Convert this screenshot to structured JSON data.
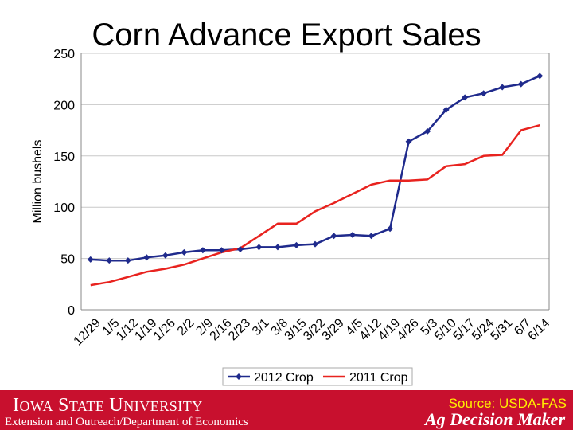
{
  "footer": {
    "university": "Iowa State University",
    "department": "Extension and Outreach/Department of Economics",
    "source": "Source: USDA-FAS",
    "brand": "Ag Decision Maker"
  },
  "colors": {
    "series_2012": "#1f2a8c",
    "series_2011": "#e8231f",
    "footer_bg": "#c8102e",
    "source_text": "#ffee00"
  },
  "chart_data": {
    "type": "line",
    "title": "Corn Advance Export Sales",
    "ylabel": "Million bushels",
    "xlabel": "",
    "ylim": [
      0,
      250
    ],
    "yticks": [
      0,
      50,
      100,
      150,
      200,
      250
    ],
    "grid": true,
    "legend_position": "bottom",
    "categories": [
      "12/29",
      "1/5",
      "1/12",
      "1/19",
      "1/26",
      "2/2",
      "2/9",
      "2/16",
      "2/23",
      "3/1",
      "3/8",
      "3/15",
      "3/22",
      "3/29",
      "4/5",
      "4/12",
      "4/19",
      "4/26",
      "5/3",
      "5/10",
      "5/17",
      "5/24",
      "5/31",
      "6/7",
      "6/14"
    ],
    "series": [
      {
        "name": "2012 Crop",
        "color": "#1f2a8c",
        "marker": "diamond",
        "values": [
          49,
          48,
          48,
          51,
          53,
          56,
          58,
          58,
          59,
          61,
          61,
          63,
          64,
          72,
          73,
          72,
          79,
          164,
          174,
          195,
          207,
          211,
          217,
          220,
          228
        ]
      },
      {
        "name": "2011 Crop",
        "color": "#e8231f",
        "marker": "none",
        "values": [
          24,
          27,
          32,
          37,
          40,
          44,
          50,
          56,
          60,
          72,
          84,
          84,
          96,
          104,
          113,
          122,
          126,
          126,
          127,
          140,
          142,
          150,
          151,
          175,
          180
        ]
      }
    ]
  }
}
